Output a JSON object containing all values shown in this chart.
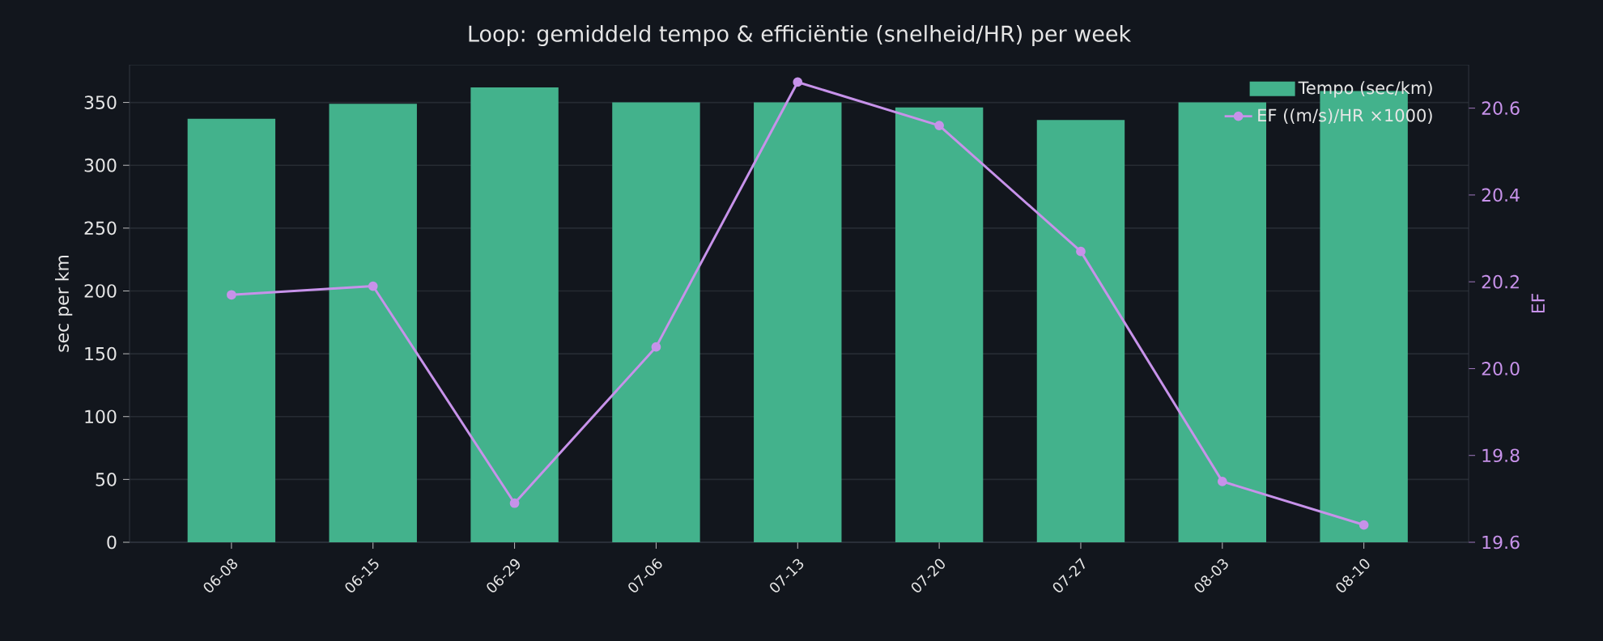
{
  "chart_data": {
    "type": "bar",
    "title": "Loop: gemiddeld tempo & efficiëntie (snelheid/HR) per week",
    "categories": [
      "06-08",
      "06-15",
      "06-29",
      "07-06",
      "07-13",
      "07-20",
      "07-27",
      "08-03",
      "08-10"
    ],
    "series": [
      {
        "name": "Tempo (sec/km)",
        "color": "#43b28c",
        "values": [
          337,
          349,
          362,
          350,
          350,
          346,
          336,
          350,
          359
        ]
      },
      {
        "name": "EF ((m/s)/HR ×1000)",
        "type": "line",
        "axis": "y2",
        "color": "#c792ea",
        "values": [
          20.17,
          20.19,
          19.69,
          20.05,
          20.66,
          20.56,
          20.27,
          19.74,
          19.64
        ]
      }
    ],
    "ylabel": "sec per km",
    "y2label": "EF",
    "ylim": [
      0,
      380
    ],
    "yticks": [
      0,
      50,
      100,
      150,
      200,
      250,
      300,
      350
    ],
    "y2lim": [
      19.6,
      20.7
    ],
    "y2ticks": [
      19.6,
      19.8,
      {
        "value": 20.0,
        "label": "20.0"
      },
      20.2,
      20.4,
      20.6
    ],
    "grid": "y",
    "legend": "top right",
    "marker": "circle",
    "line_style": "solid"
  }
}
